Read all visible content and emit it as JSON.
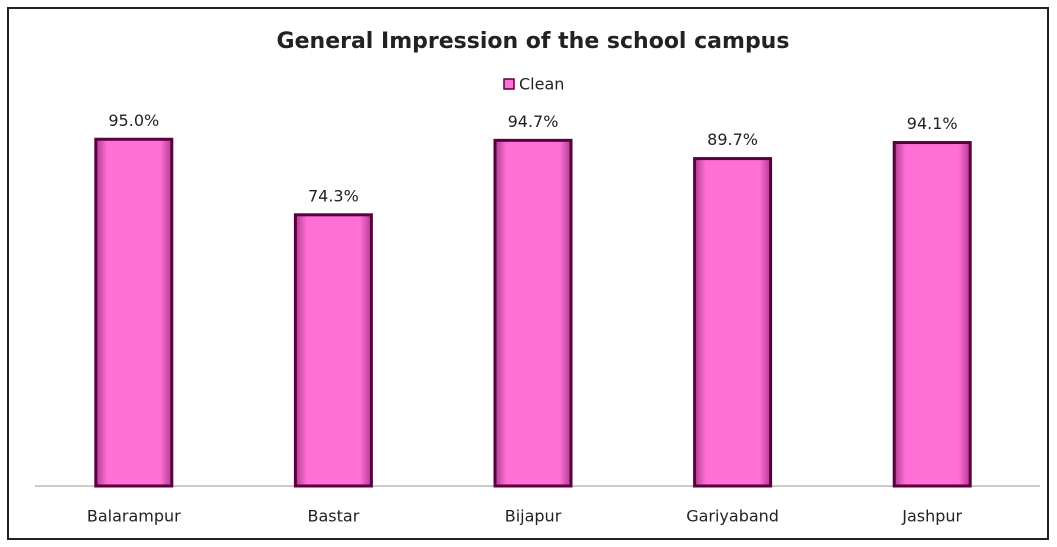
{
  "chart_data": {
    "type": "bar",
    "title": "General Impression of the school campus",
    "categories": [
      "Balarampur",
      "Bastar",
      "Bijapur",
      "Gariyaband",
      "Jashpur"
    ],
    "series": [
      {
        "name": "Clean",
        "color": "#ff6fd6",
        "values": [
          95.0,
          74.3,
          94.7,
          89.7,
          94.1
        ],
        "value_labels": [
          "95.0%",
          "74.3%",
          "94.7%",
          "89.7%",
          "94.1%"
        ]
      }
    ],
    "ylim": [
      0,
      100
    ],
    "legend": "top"
  }
}
